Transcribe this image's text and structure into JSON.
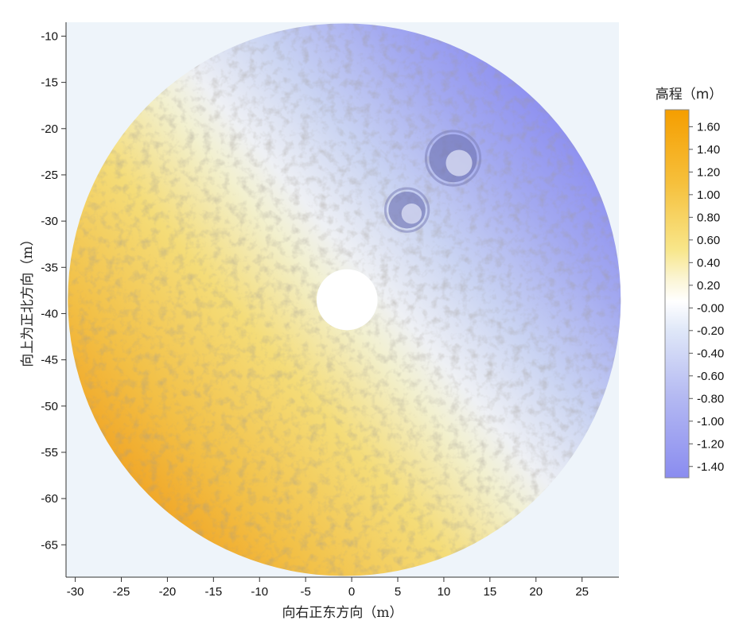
{
  "chart_data": {
    "type": "heatmap",
    "subtype": "terrain-elevation-map",
    "xlabel": "向右正东方向（m）",
    "ylabel": "向上为正北方向（m）",
    "xlim": [
      -31,
      29
    ],
    "ylim": [
      -68.5,
      -8.5
    ],
    "x_ticks": [
      -30,
      -25,
      -20,
      -15,
      -10,
      -5,
      0,
      5,
      10,
      15,
      20,
      25
    ],
    "y_ticks": [
      -10,
      -15,
      -20,
      -25,
      -30,
      -35,
      -40,
      -45,
      -50,
      -55,
      -60,
      -65
    ],
    "plot_background": "#eef4fa",
    "terrain": {
      "center": [
        -0.8,
        -38.5
      ],
      "radius": 30,
      "hole": {
        "center": [
          -0.5,
          -38.5
        ],
        "radius": 3.3
      },
      "craters": [
        {
          "center": [
            11,
            -23.2
          ],
          "radius": 2.6
        },
        {
          "center": [
            6,
            -28.8
          ],
          "radius": 2.0
        }
      ],
      "elevation_gradient": {
        "high_side": "southwest",
        "low_side": "northeast"
      }
    },
    "colorbar": {
      "title": "高程（m）",
      "range": [
        -1.5,
        1.75
      ],
      "ticks": [
        1.6,
        1.4,
        1.2,
        1.0,
        0.8,
        0.6,
        0.4,
        0.2,
        -0.0,
        -0.2,
        -0.4,
        -0.6,
        -0.8,
        -1.0,
        -1.2,
        -1.4
      ],
      "tick_labels": [
        "1.60",
        "1.40",
        "1.20",
        "1.00",
        "0.80",
        "0.60",
        "0.40",
        "0.20",
        "-0.00",
        "-0.20",
        "-0.40",
        "-0.60",
        "-0.80",
        "-1.00",
        "-1.20",
        "-1.40"
      ],
      "colors": [
        "#8c8ef0",
        "#ffffff",
        "#f5a000"
      ]
    }
  }
}
